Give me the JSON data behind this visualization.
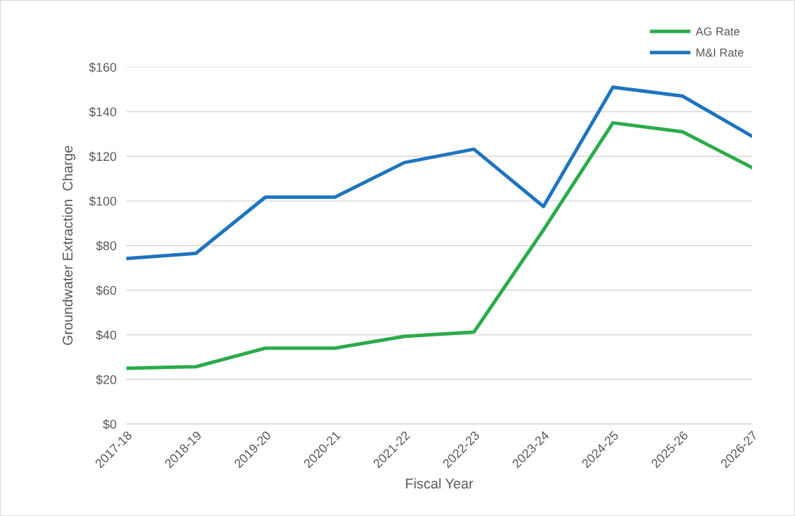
{
  "chart_data": {
    "type": "line",
    "xlabel": "Fiscal Year",
    "ylabel": "Groundwater Extraction  Charge",
    "categories": [
      "2017-18",
      "2018-19",
      "2019-20",
      "2020-21",
      "2021-22",
      "2022-23",
      "2023-24",
      "2024-25",
      "2025-26",
      "2026-27"
    ],
    "series": [
      {
        "name": "AG Rate",
        "color": "#2bab4a",
        "values": [
          25,
          25.7,
          34,
          34,
          39.3,
          41.2,
          87,
          135,
          131,
          115
        ]
      },
      {
        "name": "M&I Rate",
        "color": "#1f74bf",
        "values": [
          74.2,
          76.5,
          101.7,
          101.7,
          117.2,
          123.2,
          97.5,
          151,
          147,
          129
        ]
      }
    ],
    "ylim": [
      0,
      160
    ],
    "yticks": [
      {
        "value": 0,
        "label": "$0"
      },
      {
        "value": 20,
        "label": "$20"
      },
      {
        "value": 40,
        "label": "$40"
      },
      {
        "value": 60,
        "label": "$60"
      },
      {
        "value": 80,
        "label": "$80"
      },
      {
        "value": 100,
        "label": "$100"
      },
      {
        "value": 120,
        "label": "$120"
      },
      {
        "value": 140,
        "label": "$140"
      },
      {
        "value": 160,
        "label": "$160"
      }
    ],
    "grid": "y",
    "legend": "top right",
    "line_style": "solid"
  }
}
